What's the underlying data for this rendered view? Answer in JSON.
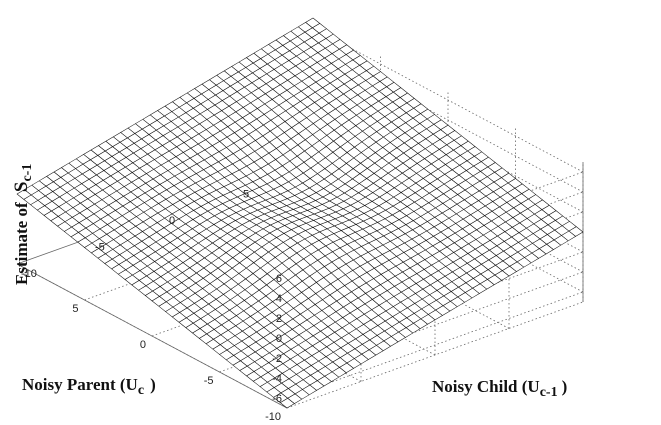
{
  "chart_data": {
    "type": "surface",
    "title": "",
    "zlabel": "Estimate of",
    "zlabel_symbol": "S",
    "zlabel_sub": "c-1",
    "xlabel": "Noisy Parent (U",
    "xlabel_sub": "c",
    "xlabel_close": ")",
    "ylabel": "Noisy Child (U",
    "ylabel_sub": "c-1",
    "ylabel_close": ")",
    "xlim": [
      -10,
      10
    ],
    "ylim": [
      -10,
      10
    ],
    "zlim": [
      -7,
      7
    ],
    "x_ticks": [
      5,
      0,
      -5,
      -10
    ],
    "y_ticks": [
      -10,
      -5,
      0,
      5
    ],
    "z_ticks": [
      6,
      4,
      2,
      0,
      -2,
      -4,
      -6
    ],
    "x_tick_labels": [
      "5",
      "0",
      "-5",
      "-10"
    ],
    "y_tick_labels": [
      "-10",
      "-5",
      "0",
      "5"
    ],
    "z_tick_labels": [
      "6",
      "4",
      "2",
      "0",
      "-2",
      "-4",
      "-6"
    ],
    "grid": true,
    "mesh_resolution": 41,
    "surface_function": "z = (x + y) * 0.35 * (1 - exp(-(x^2 + y^2)/18)), flat near origin",
    "line_color": "#111111",
    "fill_color": "#ffffff"
  }
}
